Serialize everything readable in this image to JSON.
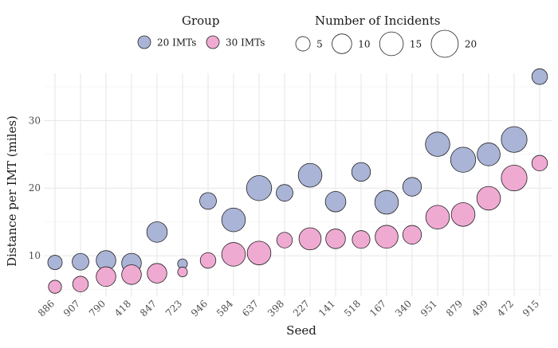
{
  "chart_data": {
    "type": "scatter",
    "xlabel": "Seed",
    "ylabel": "Distance per IMT (miles)",
    "ylim": [
      4,
      37
    ],
    "yticks": [
      10,
      20,
      30
    ],
    "grid": true,
    "categories": [
      "886",
      "907",
      "790",
      "418",
      "847",
      "723",
      "946",
      "584",
      "637",
      "398",
      "227",
      "141",
      "518",
      "167",
      "340",
      "951",
      "879",
      "499",
      "472",
      "915"
    ],
    "series": [
      {
        "name": "20 IMTs",
        "color": "#aab4d6",
        "y": [
          9.0,
          9.1,
          9.3,
          8.9,
          13.5,
          8.8,
          18.1,
          15.3,
          20.0,
          19.3,
          21.9,
          18.0,
          22.4,
          17.9,
          20.2,
          26.5,
          24.2,
          25.0,
          27.2,
          36.5
        ],
        "incidents": [
          5,
          7,
          10,
          10,
          11,
          2,
          7,
          15,
          17,
          7,
          15,
          11,
          9,
          15,
          9,
          16,
          17,
          14,
          18,
          6
        ]
      },
      {
        "name": "30 IMTs",
        "color": "#efaad2",
        "y": [
          5.4,
          5.8,
          6.9,
          7.2,
          7.4,
          7.6,
          9.3,
          10.2,
          10.4,
          12.3,
          12.5,
          12.5,
          12.4,
          12.8,
          13.1,
          15.7,
          16.1,
          18.5,
          21.5,
          23.7
        ],
        "incidents": [
          4,
          6,
          10,
          10,
          10,
          2,
          6,
          15,
          15,
          6,
          13,
          10,
          8,
          14,
          9,
          15,
          15,
          15,
          18,
          6
        ]
      }
    ],
    "legend": {
      "placement": "top",
      "group_title": "Group",
      "size_title": "Number of Incidents",
      "size_values": [
        5,
        10,
        15,
        20
      ],
      "size_labels": [
        "5",
        "10",
        "15",
        "20"
      ]
    }
  }
}
